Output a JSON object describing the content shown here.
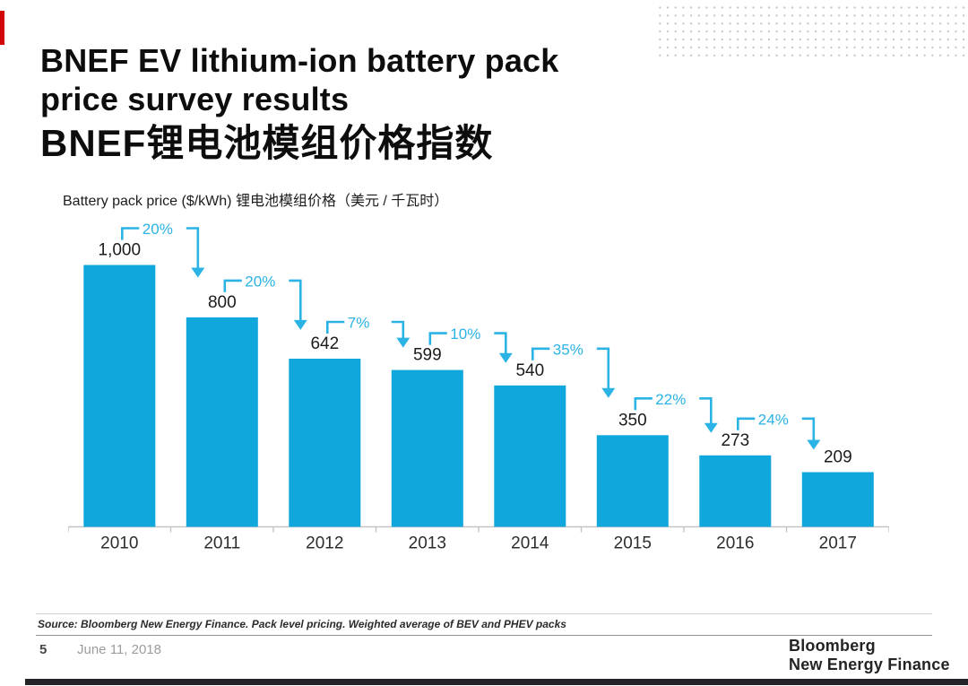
{
  "slide": {
    "title_lines": [
      "BNEF EV lithium-ion battery pack",
      "price survey results",
      "BNEF锂电池模组价格指数"
    ],
    "source_note": "Source: Bloomberg New Energy Finance. Pack level pricing. Weighted average of BEV and PHEV packs",
    "page_number": "5",
    "date": "June 11, 2018",
    "logo_lines": [
      "Bloomberg",
      "New Energy Finance"
    ]
  },
  "chart_data": {
    "type": "bar",
    "title": "Battery pack price ($/kWh) 锂电池模组价格（美元 / 千瓦时）",
    "categories": [
      "2010",
      "2011",
      "2012",
      "2013",
      "2014",
      "2015",
      "2016",
      "2017"
    ],
    "values": [
      1000,
      800,
      642,
      599,
      540,
      350,
      273,
      209
    ],
    "value_labels": [
      "1,000",
      "800",
      "642",
      "599",
      "540",
      "350",
      "273",
      "209"
    ],
    "yoy_drop_labels": [
      "20%",
      "20%",
      "7%",
      "10%",
      "35%",
      "22%",
      "24%"
    ],
    "ylabel": "Battery pack price ($/kWh)",
    "ylim": [
      0,
      1000
    ],
    "grid": false,
    "legend": "none",
    "bar_color": "#0fa7dc",
    "annotation_color": "#2bb3e5",
    "axis_color": "#c4c4c4",
    "value_text_color": "#1b1b1b",
    "year_text_color": "#2d2d2d"
  },
  "theme": {
    "accent_red": "#d10505",
    "footer_bar_color": "#242428",
    "background": "#ffffff"
  }
}
